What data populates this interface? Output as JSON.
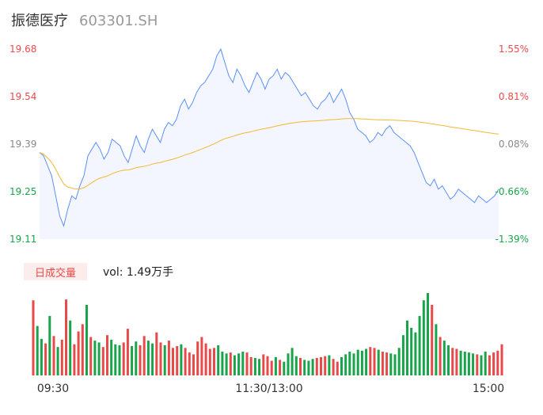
{
  "header": {
    "name": "振德医疗",
    "code": "603301.SH"
  },
  "volume": {
    "tab_label": "日成交量",
    "summary": "vol: 1.49万手"
  },
  "colors": {
    "up": "#e84a4a",
    "down": "#19a34a",
    "neutral": "#888888",
    "price_line": "#5b8ff9",
    "avg_line": "#f5b731",
    "area_fill": "#f3f6ff"
  },
  "chart_data": {
    "type": "line",
    "title": "",
    "xlabel": "",
    "ylabel": "",
    "prev_close": 19.375,
    "ylim": [
      19.11,
      19.68
    ],
    "price_ticks": [
      "19.68",
      "19.54",
      "19.39",
      "19.25",
      "19.11"
    ],
    "pct_ticks": [
      "1.55%",
      "0.81%",
      "0.08%",
      "-0.66%",
      "-1.39%"
    ],
    "x_ticks": [
      "09:30",
      "11:30/13:00",
      "15:00"
    ],
    "series": [
      {
        "values": [
          19.37,
          19.36,
          19.33,
          19.3,
          19.24,
          19.18,
          19.15,
          19.2,
          19.24,
          19.23,
          19.27,
          19.3,
          19.36,
          19.38,
          19.4,
          19.38,
          19.35,
          19.37,
          19.41,
          19.4,
          19.39,
          19.36,
          19.34,
          19.38,
          19.42,
          19.39,
          19.37,
          19.41,
          19.44,
          19.42,
          19.4,
          19.44,
          19.46,
          19.45,
          19.47,
          19.51,
          19.53,
          19.5,
          19.52,
          19.55,
          19.57,
          19.58,
          19.6,
          19.62,
          19.66,
          19.68,
          19.64,
          19.6,
          19.58,
          19.62,
          19.6,
          19.57,
          19.55,
          19.58,
          19.61,
          19.59,
          19.56,
          19.59,
          19.6,
          19.62,
          19.59,
          19.61,
          19.6,
          19.58,
          19.56,
          19.54,
          19.55,
          19.53,
          19.51,
          19.5,
          19.52,
          19.53,
          19.55,
          19.52,
          19.54,
          19.56,
          19.53,
          19.49,
          19.47,
          19.44,
          19.43,
          19.42,
          19.4,
          19.41,
          19.43,
          19.42,
          19.44,
          19.45,
          19.43,
          19.42,
          19.41,
          19.4,
          19.39,
          19.37,
          19.34,
          19.31,
          19.28,
          19.27,
          19.29,
          19.26,
          19.27,
          19.25,
          19.23,
          19.24,
          19.26,
          19.25,
          19.24,
          19.23,
          19.22,
          19.24,
          19.23,
          19.22,
          19.23,
          19.24,
          19.26
        ],
        "volumes": [
          820,
          540,
          400,
          350,
          650,
          430,
          310,
          390,
          830,
          600,
          340,
          480,
          560,
          770,
          420,
          380,
          360,
          310,
          440,
          390,
          340,
          330,
          360,
          510,
          320,
          370,
          330,
          430,
          380,
          350,
          470,
          360,
          330,
          380,
          300,
          320,
          340,
          300,
          250,
          230,
          370,
          420,
          350,
          290,
          300,
          330,
          260,
          240,
          250,
          220,
          240,
          260,
          250,
          200,
          190,
          180,
          230,
          210,
          160,
          200,
          170,
          150,
          240,
          300,
          210,
          190,
          170,
          160,
          180,
          190,
          200,
          210,
          220,
          180,
          150,
          200,
          230,
          260,
          240,
          280,
          270,
          290,
          310,
          300,
          280,
          260,
          250,
          240,
          230,
          300,
          440,
          600,
          520,
          470,
          650,
          820,
          900,
          770,
          560,
          420,
          380,
          330,
          300,
          290,
          270,
          260,
          250,
          240,
          230,
          220,
          260,
          220,
          250,
          270,
          340
        ],
        "changes": [
          1,
          -1,
          -1,
          1,
          -1,
          1,
          -1,
          1,
          1,
          -1,
          1,
          1,
          1,
          -1,
          1,
          -1,
          -1,
          1,
          1,
          -1,
          -1,
          -1,
          1,
          1,
          -1,
          -1,
          1,
          1,
          -1,
          -1,
          1,
          1,
          -1,
          1,
          1,
          1,
          -1,
          1,
          1,
          1,
          1,
          1,
          1,
          1,
          1,
          -1,
          -1,
          -1,
          1,
          -1,
          -1,
          -1,
          1,
          1,
          -1,
          -1,
          1,
          1,
          1,
          -1,
          1,
          -1,
          -1,
          -1,
          -1,
          1,
          -1,
          -1,
          -1,
          1,
          1,
          1,
          -1,
          1,
          1,
          -1,
          -1,
          -1,
          -1,
          -1,
          -1,
          -1,
          1,
          1,
          -1,
          1,
          1,
          -1,
          -1,
          -1,
          -1,
          -1,
          -1,
          -1,
          -1,
          -1,
          -1,
          1,
          -1,
          1,
          -1,
          -1,
          1,
          1,
          -1,
          -1,
          -1,
          -1,
          1,
          -1,
          -1,
          1,
          1,
          1,
          1
        ]
      }
    ]
  }
}
